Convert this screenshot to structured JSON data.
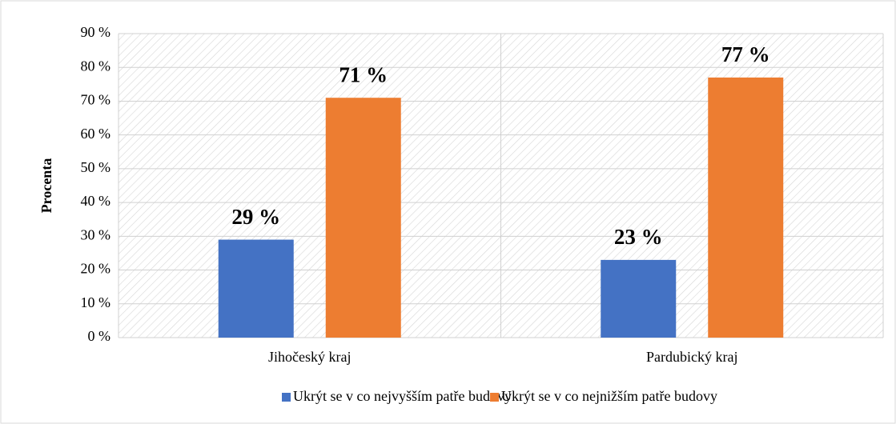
{
  "chart_data": {
    "type": "bar",
    "y_label": "Procenta",
    "categories": [
      "Jihočeský kraj",
      "Pardubický kraj"
    ],
    "series": [
      {
        "name": "Ukrýt se v co nejvyšším patře budovy",
        "color": "#4472c4",
        "values": [
          29,
          23
        ],
        "value_labels": [
          "29 %",
          "23 %"
        ]
      },
      {
        "name": "Ukrýt se v co nejnižším patře budovy",
        "color": "#ed7d31",
        "values": [
          71,
          77
        ],
        "value_labels": [
          "71 %",
          "77 %"
        ]
      }
    ],
    "ylim": [
      0,
      90
    ],
    "yticks": [
      {
        "value": 0,
        "label": "0 %"
      },
      {
        "value": 10,
        "label": "10 %"
      },
      {
        "value": 20,
        "label": "20 %"
      },
      {
        "value": 30,
        "label": "30 %"
      },
      {
        "value": 40,
        "label": "40 %"
      },
      {
        "value": 50,
        "label": "50 %"
      },
      {
        "value": 60,
        "label": "60 %"
      },
      {
        "value": 70,
        "label": "70 %"
      },
      {
        "value": 80,
        "label": "80 %"
      },
      {
        "value": 90,
        "label": "90 %"
      }
    ],
    "grid": true,
    "legend": "bottom"
  }
}
